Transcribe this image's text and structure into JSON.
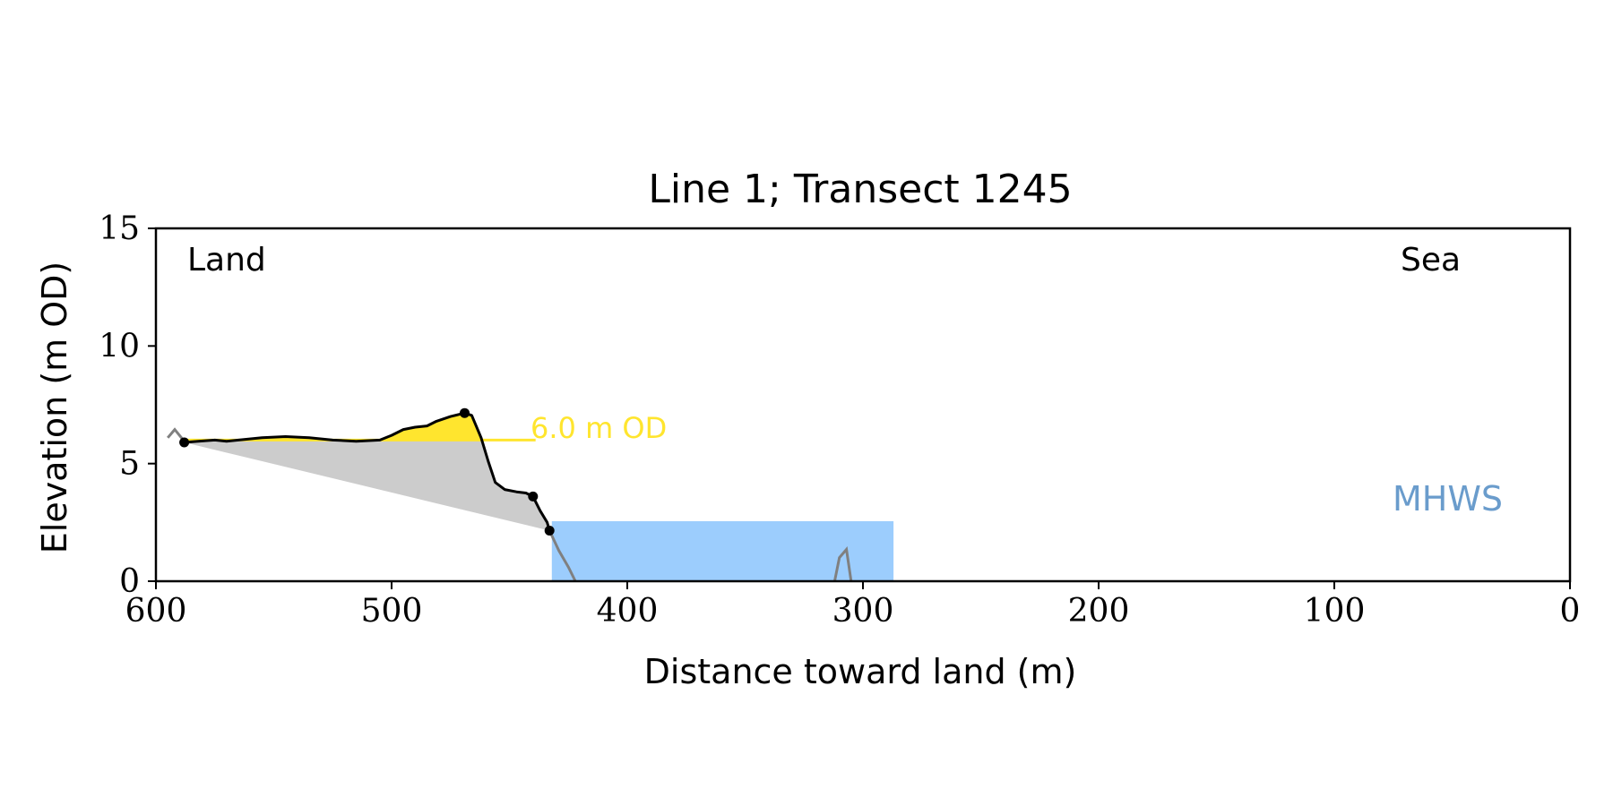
{
  "chart_data": {
    "type": "line",
    "title": "Line 1; Transect 1245",
    "xlabel": "Distance toward land (m)",
    "ylabel": "Elevation (m OD)",
    "xlim": [
      600,
      0
    ],
    "ylim": [
      0,
      15
    ],
    "x_ticks": [
      600,
      500,
      400,
      300,
      200,
      100,
      0
    ],
    "y_ticks": [
      0,
      5,
      10,
      15
    ],
    "grid": false,
    "annotations": {
      "land": "Land",
      "sea": "Sea",
      "threshold_label": "6.0 m OD",
      "mhws_label": "MHWS"
    },
    "threshold_elevation": 6.0,
    "mhws": {
      "elevation": 2.55,
      "x_start": 432,
      "x_end": 287
    },
    "profile_raw": [
      [
        595,
        6.1
      ],
      [
        592,
        6.45
      ],
      [
        588,
        5.95
      ],
      [
        433,
        2.15
      ],
      [
        429,
        1.3
      ],
      [
        425,
        0.6
      ],
      [
        422,
        0.0
      ],
      [
        312,
        0.0
      ],
      [
        310,
        1.0
      ],
      [
        307,
        1.35
      ],
      [
        305,
        0.0
      ]
    ],
    "profile_main": [
      [
        588,
        5.9
      ],
      [
        582,
        5.95
      ],
      [
        575,
        6.0
      ],
      [
        570,
        5.95
      ],
      [
        565,
        6.0
      ],
      [
        555,
        6.1
      ],
      [
        545,
        6.15
      ],
      [
        535,
        6.1
      ],
      [
        525,
        6.0
      ],
      [
        515,
        5.95
      ],
      [
        505,
        6.0
      ],
      [
        500,
        6.2
      ],
      [
        495,
        6.45
      ],
      [
        490,
        6.55
      ],
      [
        485,
        6.6
      ],
      [
        481,
        6.8
      ],
      [
        475,
        7.0
      ],
      [
        469,
        7.15
      ],
      [
        466,
        7.05
      ],
      [
        462,
        6.1
      ],
      [
        459,
        5.1
      ],
      [
        456,
        4.2
      ],
      [
        452,
        3.9
      ],
      [
        447,
        3.8
      ],
      [
        443,
        3.75
      ],
      [
        440,
        3.6
      ],
      [
        437,
        3.0
      ],
      [
        434,
        2.5
      ],
      [
        433,
        2.15
      ]
    ],
    "markers": [
      {
        "x": 588,
        "y": 5.9
      },
      {
        "x": 469,
        "y": 7.15
      },
      {
        "x": 440,
        "y": 3.6
      },
      {
        "x": 433,
        "y": 2.15
      }
    ],
    "colors": {
      "profile": "#000000",
      "raw_profile": "#808080",
      "volume_fill": "#cccccc",
      "above_threshold_fill": "#ffe52e",
      "threshold_line": "#ffe52e",
      "mhws_fill": "#9ccdfd",
      "mhws_text": "#6a9ccc"
    }
  }
}
